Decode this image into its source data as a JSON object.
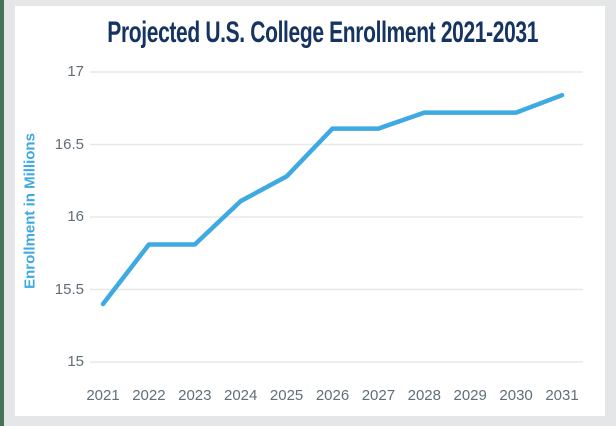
{
  "page": {
    "background_color": "#e5e6e8",
    "accent_strip_color": "#487055",
    "card_color": "#ffffff"
  },
  "chart_data": {
    "type": "line",
    "title": "Projected U.S. College Enrollment 2021-2031",
    "title_color": "#163461",
    "ylabel": "Enrollment in Millions",
    "ylabel_color": "#3fa9e1",
    "xlabel": "",
    "categories": [
      "2021",
      "2022",
      "2023",
      "2024",
      "2025",
      "2026",
      "2027",
      "2028",
      "2029",
      "2030",
      "2031"
    ],
    "values": [
      15.4,
      15.81,
      15.81,
      16.11,
      16.28,
      16.61,
      16.61,
      16.72,
      16.72,
      16.72,
      16.84
    ],
    "ylim": [
      15,
      17
    ],
    "yticks": [
      17,
      16.5,
      16,
      15.5,
      15
    ],
    "ytick_labels": [
      "17",
      "16.5",
      "16",
      "15.5",
      "15"
    ],
    "grid": "horizontal-only",
    "legend": "none",
    "line_color": "#3fa9e1",
    "gridline_color": "#e7e8ea",
    "tick_label_color": "#5e6f78"
  }
}
